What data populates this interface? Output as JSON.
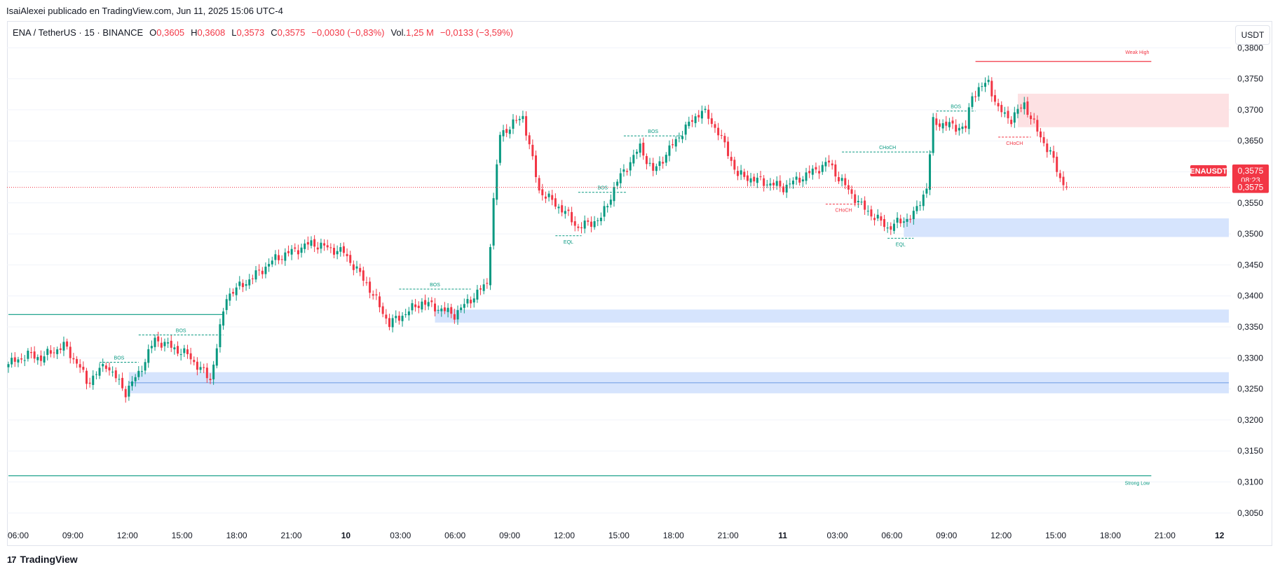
{
  "header": {
    "credit": "IsaiAlexei publicado en TradingView.com, Jun 11, 2025 15:06 UTC-4"
  },
  "legend": {
    "symbol": "ENA / TetherUS · 15 · BINANCE",
    "o_label": "O",
    "o_value": "0,3605",
    "h_label": "H",
    "h_value": "0,3608",
    "l_label": "L",
    "l_value": "0,3573",
    "c_label": "C",
    "c_value": "0,3575",
    "change": "−0,0030 (−0,83%)",
    "vol_label": "Vol.",
    "vol_value": "1,25 M",
    "vol_change": "−0,0133 (−3,59%)"
  },
  "currency_button": "USDT",
  "footer": {
    "logo": "17",
    "brand": "TradingView"
  },
  "colors": {
    "up": "#089981",
    "down": "#f23645",
    "zone_blue": "#d6e4fd",
    "zone_red": "#fde1e3",
    "grid": "#f0f3fa",
    "text": "#131722"
  },
  "chart_data": {
    "type": "candlestick",
    "symbol_tag": "ENAUSDT",
    "price_badge": "0,3575",
    "countdown": "08:23",
    "last_price_label": "0,3575",
    "y_ticks": [
      "0,3800",
      "0,3750",
      "0,3700",
      "0,3650",
      "0,3600",
      "0,3550",
      "0,3500",
      "0,3450",
      "0,3400",
      "0,3350",
      "0,3300",
      "0,3250",
      "0,3200",
      "0,3150",
      "0,3100",
      "0,3050"
    ],
    "y_tick_values": [
      0.38,
      0.375,
      0.37,
      0.365,
      0.36,
      0.355,
      0.35,
      0.345,
      0.34,
      0.335,
      0.33,
      0.325,
      0.32,
      0.315,
      0.31,
      0.305
    ],
    "x_ticks": [
      "06:00",
      "09:00",
      "12:00",
      "15:00",
      "18:00",
      "21:00",
      "10",
      "03:00",
      "06:00",
      "09:00",
      "12:00",
      "15:00",
      "18:00",
      "21:00",
      "11",
      "03:00",
      "06:00",
      "09:00",
      "12:00",
      "15:00",
      "18:00",
      "21:00",
      "12"
    ],
    "x_tick_bold": [
      false,
      false,
      false,
      false,
      false,
      false,
      true,
      false,
      false,
      false,
      false,
      false,
      false,
      false,
      true,
      false,
      false,
      false,
      false,
      false,
      false,
      false,
      true
    ],
    "last_price": 0.3575,
    "anchors": [
      [
        0,
        0.329
      ],
      [
        6,
        0.3305
      ],
      [
        10,
        0.33
      ],
      [
        17,
        0.332
      ],
      [
        22,
        0.3285
      ],
      [
        24,
        0.326
      ],
      [
        30,
        0.329
      ],
      [
        36,
        0.3245
      ],
      [
        40,
        0.3275
      ],
      [
        45,
        0.333
      ],
      [
        55,
        0.3305
      ],
      [
        62,
        0.3265
      ],
      [
        67,
        0.34
      ],
      [
        75,
        0.343
      ],
      [
        82,
        0.346
      ],
      [
        93,
        0.3485
      ],
      [
        103,
        0.347
      ],
      [
        110,
        0.342
      ],
      [
        117,
        0.3355
      ],
      [
        127,
        0.339
      ],
      [
        137,
        0.337
      ],
      [
        142,
        0.3395
      ],
      [
        147,
        0.342
      ],
      [
        149,
        0.3555
      ],
      [
        151,
        0.366
      ],
      [
        158,
        0.369
      ],
      [
        163,
        0.357
      ],
      [
        171,
        0.3535
      ],
      [
        175,
        0.351
      ],
      [
        182,
        0.3525
      ],
      [
        187,
        0.3585
      ],
      [
        194,
        0.364
      ],
      [
        198,
        0.36
      ],
      [
        207,
        0.3665
      ],
      [
        213,
        0.37
      ],
      [
        218,
        0.3665
      ],
      [
        224,
        0.3595
      ],
      [
        238,
        0.3575
      ],
      [
        252,
        0.3615
      ],
      [
        255,
        0.359
      ],
      [
        262,
        0.3545
      ],
      [
        270,
        0.351
      ],
      [
        278,
        0.353
      ],
      [
        282,
        0.3575
      ],
      [
        284,
        0.368
      ],
      [
        294,
        0.367
      ],
      [
        296,
        0.3725
      ],
      [
        301,
        0.3745
      ],
      [
        304,
        0.37
      ],
      [
        308,
        0.3685
      ],
      [
        312,
        0.371
      ],
      [
        316,
        0.3665
      ],
      [
        320,
        0.363
      ],
      [
        323,
        0.359
      ],
      [
        325,
        0.3575
      ]
    ],
    "zones_blue": [
      {
        "x_start": 37,
        "x_end": 999,
        "top": 0.3277,
        "bottom": 0.3243
      },
      {
        "x_start": 131,
        "x_end": 999,
        "top": 0.3378,
        "bottom": 0.3357
      },
      {
        "x_start": 275,
        "x_end": 999,
        "top": 0.3525,
        "bottom": 0.3495
      }
    ],
    "zones_red": [
      {
        "x_start": 310,
        "x_end": 999,
        "top": 0.3726,
        "bottom": 0.3672
      }
    ],
    "zone_midline": 0.326,
    "levels": [
      {
        "name": "weak-high",
        "label": "Weak High",
        "price": 0.3778,
        "x_start": 297,
        "x_end": 351,
        "color": "#f23645"
      },
      {
        "name": "strong-low",
        "label": "Strong Low",
        "price": 0.311,
        "x_start": 0,
        "x_end": 351,
        "color": "#089981"
      },
      {
        "name": "old-high",
        "label": "",
        "price": 0.337,
        "x_start": 0,
        "x_end": 66,
        "color": "#089981"
      }
    ],
    "structure": [
      {
        "label": "BOS",
        "type": "bos",
        "price": 0.3293,
        "x_start": 28,
        "x_end": 40
      },
      {
        "label": "BOS",
        "type": "bos",
        "price": 0.3337,
        "x_start": 40,
        "x_end": 66
      },
      {
        "label": "BOS",
        "type": "bos",
        "price": 0.3411,
        "x_start": 120,
        "x_end": 142
      },
      {
        "label": "BOS",
        "type": "bos",
        "price": 0.3567,
        "x_start": 175,
        "x_end": 190
      },
      {
        "label": "BOS",
        "type": "bos",
        "price": 0.3658,
        "x_start": 189,
        "x_end": 207
      },
      {
        "label": "CHoCH",
        "type": "choch-up",
        "price": 0.3632,
        "x_start": 256,
        "x_end": 284
      },
      {
        "label": "CHoCH",
        "type": "choch-down",
        "price": 0.3548,
        "x_start": 251,
        "x_end": 262
      },
      {
        "label": "BOS",
        "type": "bos",
        "price": 0.3698,
        "x_start": 285,
        "x_end": 297
      },
      {
        "label": "CHoCH",
        "type": "choch-down",
        "price": 0.3656,
        "x_start": 304,
        "x_end": 314
      },
      {
        "label": "EQL",
        "type": "eql",
        "price": 0.3497,
        "x_start": 168,
        "x_end": 176
      },
      {
        "label": "EQL",
        "type": "eql",
        "price": 0.3493,
        "x_start": 270,
        "x_end": 278
      }
    ]
  }
}
